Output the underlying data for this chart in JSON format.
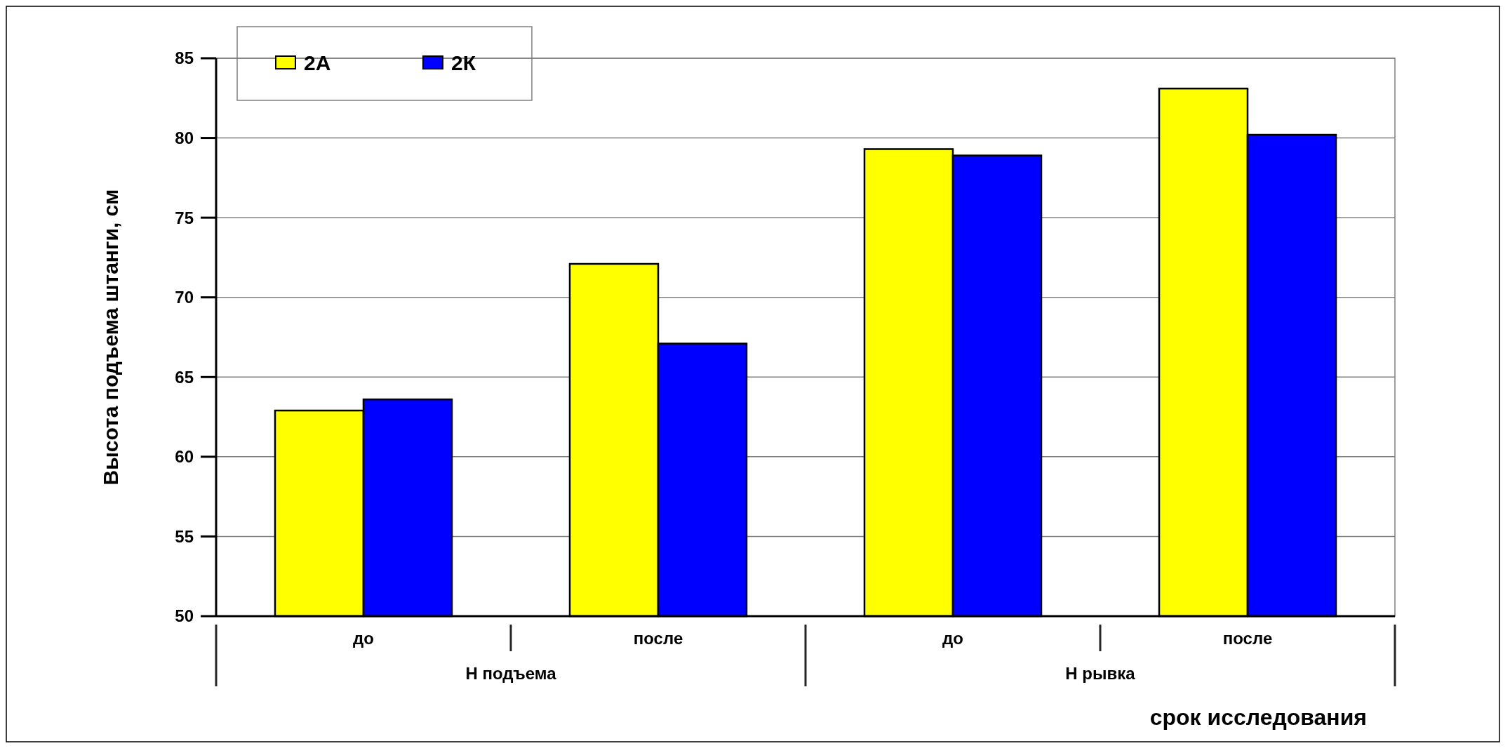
{
  "chart_data": {
    "type": "bar",
    "xlabel": "срок исследования",
    "ylabel": "Высота подъема штанги, см",
    "categories": [
      "до",
      "после",
      "до",
      "после"
    ],
    "series": [
      {
        "name": "2А",
        "color": "#ffff00",
        "values": [
          62.9,
          72.1,
          79.3,
          83.1
        ]
      },
      {
        "name": "2К",
        "color": "#0000ff",
        "values": [
          63.6,
          67.1,
          78.9,
          80.2
        ]
      }
    ],
    "annotations": [
      "Н подъема",
      "Н рывка"
    ],
    "ylim": [
      50,
      85
    ],
    "yticks": [
      50,
      55,
      60,
      65,
      70,
      75,
      80,
      85
    ],
    "grid": "y",
    "legend": "top left"
  }
}
